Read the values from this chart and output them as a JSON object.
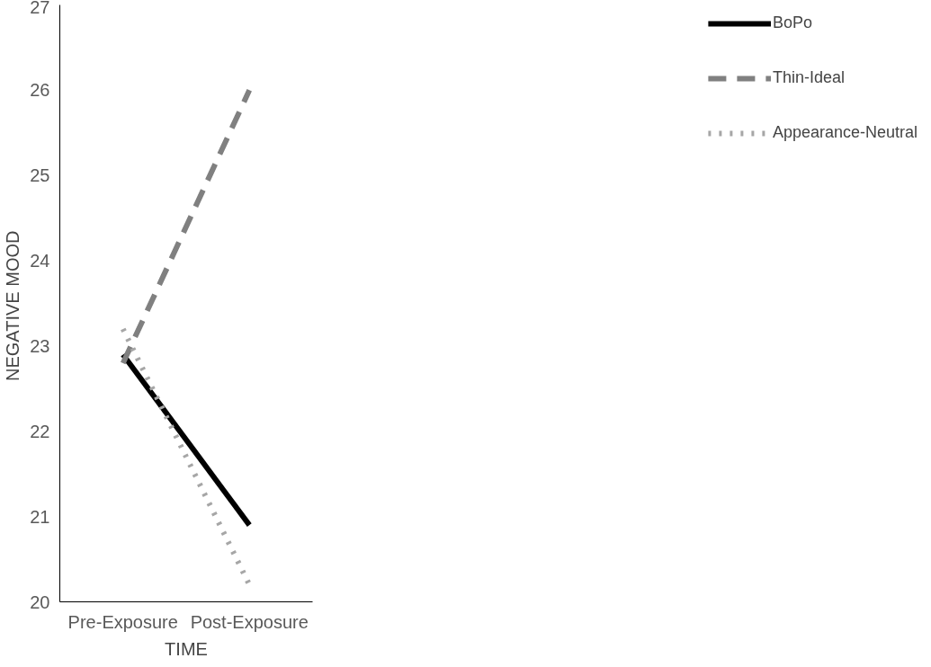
{
  "chart_data": {
    "type": "line",
    "xlabel": "TIME",
    "ylabel": "NEGATIVE  MOOD",
    "categories": [
      "Pre-Exposure",
      "Post-Exposure"
    ],
    "series": [
      {
        "name": "BoPo",
        "color": "#000000",
        "line_style": "solid",
        "values": [
          22.9,
          20.9
        ]
      },
      {
        "name": "Thin-Ideal",
        "color": "#808080",
        "line_style": "dashed",
        "values": [
          22.8,
          26.0
        ]
      },
      {
        "name": "Appearance-Neutral",
        "color": "#a6a6a6",
        "line_style": "dotted",
        "values": [
          23.2,
          20.2
        ]
      }
    ],
    "ylim": [
      20,
      27
    ],
    "yticks": [
      20,
      21,
      22,
      23,
      24,
      25,
      26,
      27
    ],
    "grid": false,
    "legend": "right"
  }
}
